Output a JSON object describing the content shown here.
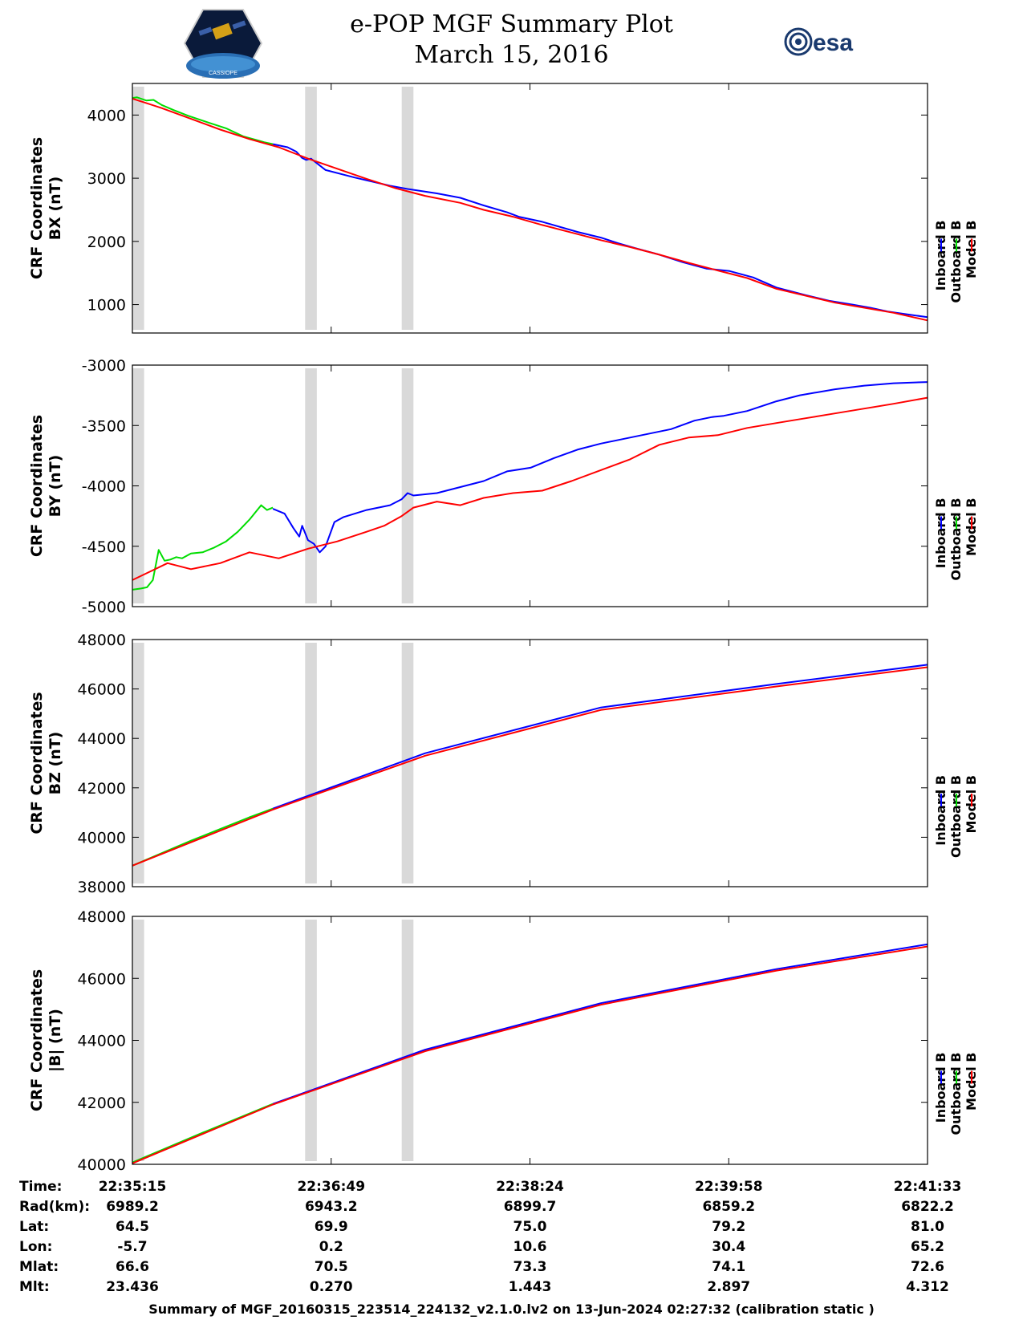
{
  "header": {
    "title_line1": "e-POP MGF Summary Plot",
    "title_line2": "March 15, 2016",
    "logo_left": "cassiope-mission-logo",
    "logo_right": "esa-logo",
    "logo_right_text": "esa",
    "logo_left_text": "CASSIOPE"
  },
  "colors": {
    "inboard": "#0000ff",
    "outboard": "#00dd00",
    "model": "#ff0000",
    "gap_shading": "#d9d9d9"
  },
  "chart_data": [
    {
      "type": "line",
      "ylabel_line1": "CRF Coordinates",
      "ylabel_line2": "BX (nT)",
      "ylim": [
        550,
        4500
      ],
      "yticks": [
        1000,
        2000,
        3000,
        4000
      ],
      "ytick_labels": [
        "1000",
        "2000",
        "3000",
        "4000"
      ],
      "legend": [
        "Inboard B",
        "Outboard B",
        "Model B"
      ],
      "series": [
        {
          "name": "Outboard B",
          "x": [
            0,
            8,
            24,
            36,
            50,
            70,
            95,
            130,
            160,
            190,
            210,
            225,
            240
          ],
          "y": [
            4270,
            4280,
            4230,
            4240,
            4160,
            4080,
            3990,
            3880,
            3790,
            3660,
            3610,
            3570,
            3540
          ]
        },
        {
          "name": "Inboard B",
          "x": [
            240,
            265,
            280,
            290,
            297,
            305,
            330,
            380,
            440,
            470,
            520,
            560,
            600,
            640,
            660,
            700,
            760,
            800,
            830,
            860,
            900,
            940,
            980,
            1020,
            1060,
            1100,
            1150,
            1190,
            1230,
            1260,
            1290,
            1358
          ],
          "y": [
            3540,
            3490,
            3420,
            3320,
            3290,
            3310,
            3130,
            3010,
            2880,
            2830,
            2760,
            2690,
            2570,
            2460,
            2390,
            2310,
            2150,
            2060,
            1970,
            1890,
            1790,
            1670,
            1570,
            1530,
            1430,
            1270,
            1150,
            1060,
            1000,
            950,
            890,
            800
          ]
        },
        {
          "name": "Model B",
          "x": [
            0,
            20,
            50,
            100,
            150,
            200,
            250,
            300,
            350,
            400,
            450,
            500,
            560,
            600,
            650,
            700,
            750,
            800,
            850,
            900,
            950,
            1000,
            1050,
            1100,
            1150,
            1200,
            1250,
            1300,
            1358
          ],
          "y": [
            4260,
            4200,
            4110,
            3940,
            3770,
            3620,
            3490,
            3310,
            3150,
            2990,
            2840,
            2720,
            2610,
            2500,
            2390,
            2260,
            2140,
            2020,
            1910,
            1790,
            1660,
            1540,
            1420,
            1250,
            1140,
            1030,
            950,
            870,
            750
          ]
        }
      ]
    },
    {
      "type": "line",
      "ylabel_line1": "CRF Coordinates",
      "ylabel_line2": "BY (nT)",
      "ylim": [
        -5000,
        -3000
      ],
      "yticks": [
        -5000,
        -4500,
        -4000,
        -3500,
        -3000
      ],
      "ytick_labels": [
        "-5000",
        "-4500",
        "-4000",
        "-3500",
        "-3000"
      ],
      "legend": [
        "Inboard B",
        "Outboard B",
        "Model B"
      ],
      "series": [
        {
          "name": "Outboard B",
          "x": [
            0,
            15,
            25,
            35,
            45,
            55,
            65,
            75,
            85,
            100,
            120,
            140,
            160,
            180,
            200,
            220,
            230,
            240
          ],
          "y": [
            -4860,
            -4850,
            -4840,
            -4780,
            -4530,
            -4620,
            -4610,
            -4590,
            -4600,
            -4560,
            -4550,
            -4510,
            -4460,
            -4380,
            -4280,
            -4160,
            -4200,
            -4180
          ]
        },
        {
          "name": "Inboard B",
          "x": [
            240,
            260,
            275,
            285,
            290,
            300,
            310,
            320,
            330,
            345,
            360,
            380,
            400,
            420,
            440,
            460,
            470,
            480,
            500,
            520,
            560,
            600,
            640,
            680,
            720,
            760,
            800,
            840,
            880,
            920,
            960,
            990,
            1010,
            1050,
            1100,
            1140,
            1200,
            1250,
            1300,
            1358
          ],
          "y": [
            -4190,
            -4230,
            -4350,
            -4420,
            -4330,
            -4450,
            -4480,
            -4550,
            -4500,
            -4300,
            -4260,
            -4230,
            -4200,
            -4180,
            -4160,
            -4110,
            -4060,
            -4080,
            -4070,
            -4060,
            -4010,
            -3960,
            -3880,
            -3850,
            -3770,
            -3700,
            -3650,
            -3610,
            -3570,
            -3530,
            -3460,
            -3430,
            -3420,
            -3380,
            -3300,
            -3250,
            -3200,
            -3170,
            -3150,
            -3140
          ]
        },
        {
          "name": "Model B",
          "x": [
            0,
            30,
            60,
            100,
            150,
            200,
            250,
            300,
            350,
            400,
            430,
            460,
            480,
            520,
            560,
            600,
            650,
            700,
            750,
            800,
            850,
            900,
            950,
            1000,
            1050,
            1100,
            1150,
            1200,
            1250,
            1300,
            1358
          ],
          "y": [
            -4780,
            -4710,
            -4640,
            -4690,
            -4640,
            -4550,
            -4600,
            -4520,
            -4460,
            -4380,
            -4330,
            -4250,
            -4180,
            -4130,
            -4160,
            -4100,
            -4060,
            -4040,
            -3960,
            -3870,
            -3780,
            -3660,
            -3600,
            -3580,
            -3520,
            -3480,
            -3440,
            -3400,
            -3360,
            -3320,
            -3270
          ]
        }
      ]
    },
    {
      "type": "line",
      "ylabel_line1": "CRF Coordinates",
      "ylabel_line2": "BZ (nT)",
      "ylim": [
        38000,
        48000
      ],
      "yticks": [
        38000,
        40000,
        42000,
        44000,
        46000,
        48000
      ],
      "ytick_labels": [
        "38000",
        "40000",
        "42000",
        "44000",
        "46000",
        "48000"
      ],
      "legend": [
        "Inboard B",
        "Outboard B",
        "Model B"
      ],
      "series": [
        {
          "name": "Outboard B",
          "x": [
            0,
            100,
            200,
            240
          ],
          "y": [
            38850,
            39860,
            40810,
            41160
          ]
        },
        {
          "name": "Inboard B",
          "x": [
            240,
            500,
            800,
            1100,
            1358
          ],
          "y": [
            41160,
            43400,
            45250,
            46200,
            46980
          ]
        },
        {
          "name": "Model B",
          "x": [
            0,
            240,
            500,
            800,
            1100,
            1358
          ],
          "y": [
            38850,
            41120,
            43300,
            45150,
            46100,
            46880
          ]
        }
      ]
    },
    {
      "type": "line",
      "ylabel_line1": "CRF Coordinates",
      "ylabel_line2": "|B| (nT)",
      "ylim": [
        40000,
        48000
      ],
      "yticks": [
        40000,
        42000,
        44000,
        46000,
        48000
      ],
      "ytick_labels": [
        "40000",
        "42000",
        "44000",
        "46000",
        "48000"
      ],
      "legend": [
        "Inboard B",
        "Outboard B",
        "Model B"
      ],
      "series": [
        {
          "name": "Outboard B",
          "x": [
            0,
            120,
            240
          ],
          "y": [
            40060,
            41020,
            41950
          ]
        },
        {
          "name": "Inboard B",
          "x": [
            240,
            500,
            800,
            1100,
            1358
          ],
          "y": [
            41950,
            43700,
            45200,
            46300,
            47100
          ]
        },
        {
          "name": "Model B",
          "x": [
            0,
            240,
            500,
            800,
            1100,
            1358
          ],
          "y": [
            40030,
            41930,
            43650,
            45150,
            46250,
            47030
          ]
        }
      ]
    }
  ],
  "data_gaps": [
    [
      0,
      20
    ],
    [
      295,
      315
    ],
    [
      460,
      480
    ]
  ],
  "time_axis": {
    "xlim": [
      0,
      1358
    ],
    "tick_positions": [
      0,
      339.5,
      679,
      1018.5,
      1358
    ],
    "rows": [
      {
        "label": "Time:",
        "values": [
          "22:35:15",
          "22:36:49",
          "22:38:24",
          "22:39:58",
          "22:41:33"
        ]
      },
      {
        "label": "Rad(km):",
        "values": [
          "6989.2",
          "6943.2",
          "6899.7",
          "6859.2",
          "6822.2"
        ]
      },
      {
        "label": "Lat:",
        "values": [
          "64.5",
          "69.9",
          "75.0",
          "79.2",
          "81.0"
        ]
      },
      {
        "label": "Lon:",
        "values": [
          "-5.7",
          "0.2",
          "10.6",
          "30.4",
          "65.2"
        ]
      },
      {
        "label": "Mlat:",
        "values": [
          "66.6",
          "70.5",
          "73.3",
          "74.1",
          "72.6"
        ]
      },
      {
        "label": "Mlt:",
        "values": [
          "23.436",
          "0.270",
          "1.443",
          "2.897",
          "4.312"
        ]
      }
    ]
  },
  "footer": {
    "text": "Summary of MGF_20160315_223514_224132_v2.1.0.lv2 on 13-Jun-2024 02:27:32 (calibration static )"
  }
}
